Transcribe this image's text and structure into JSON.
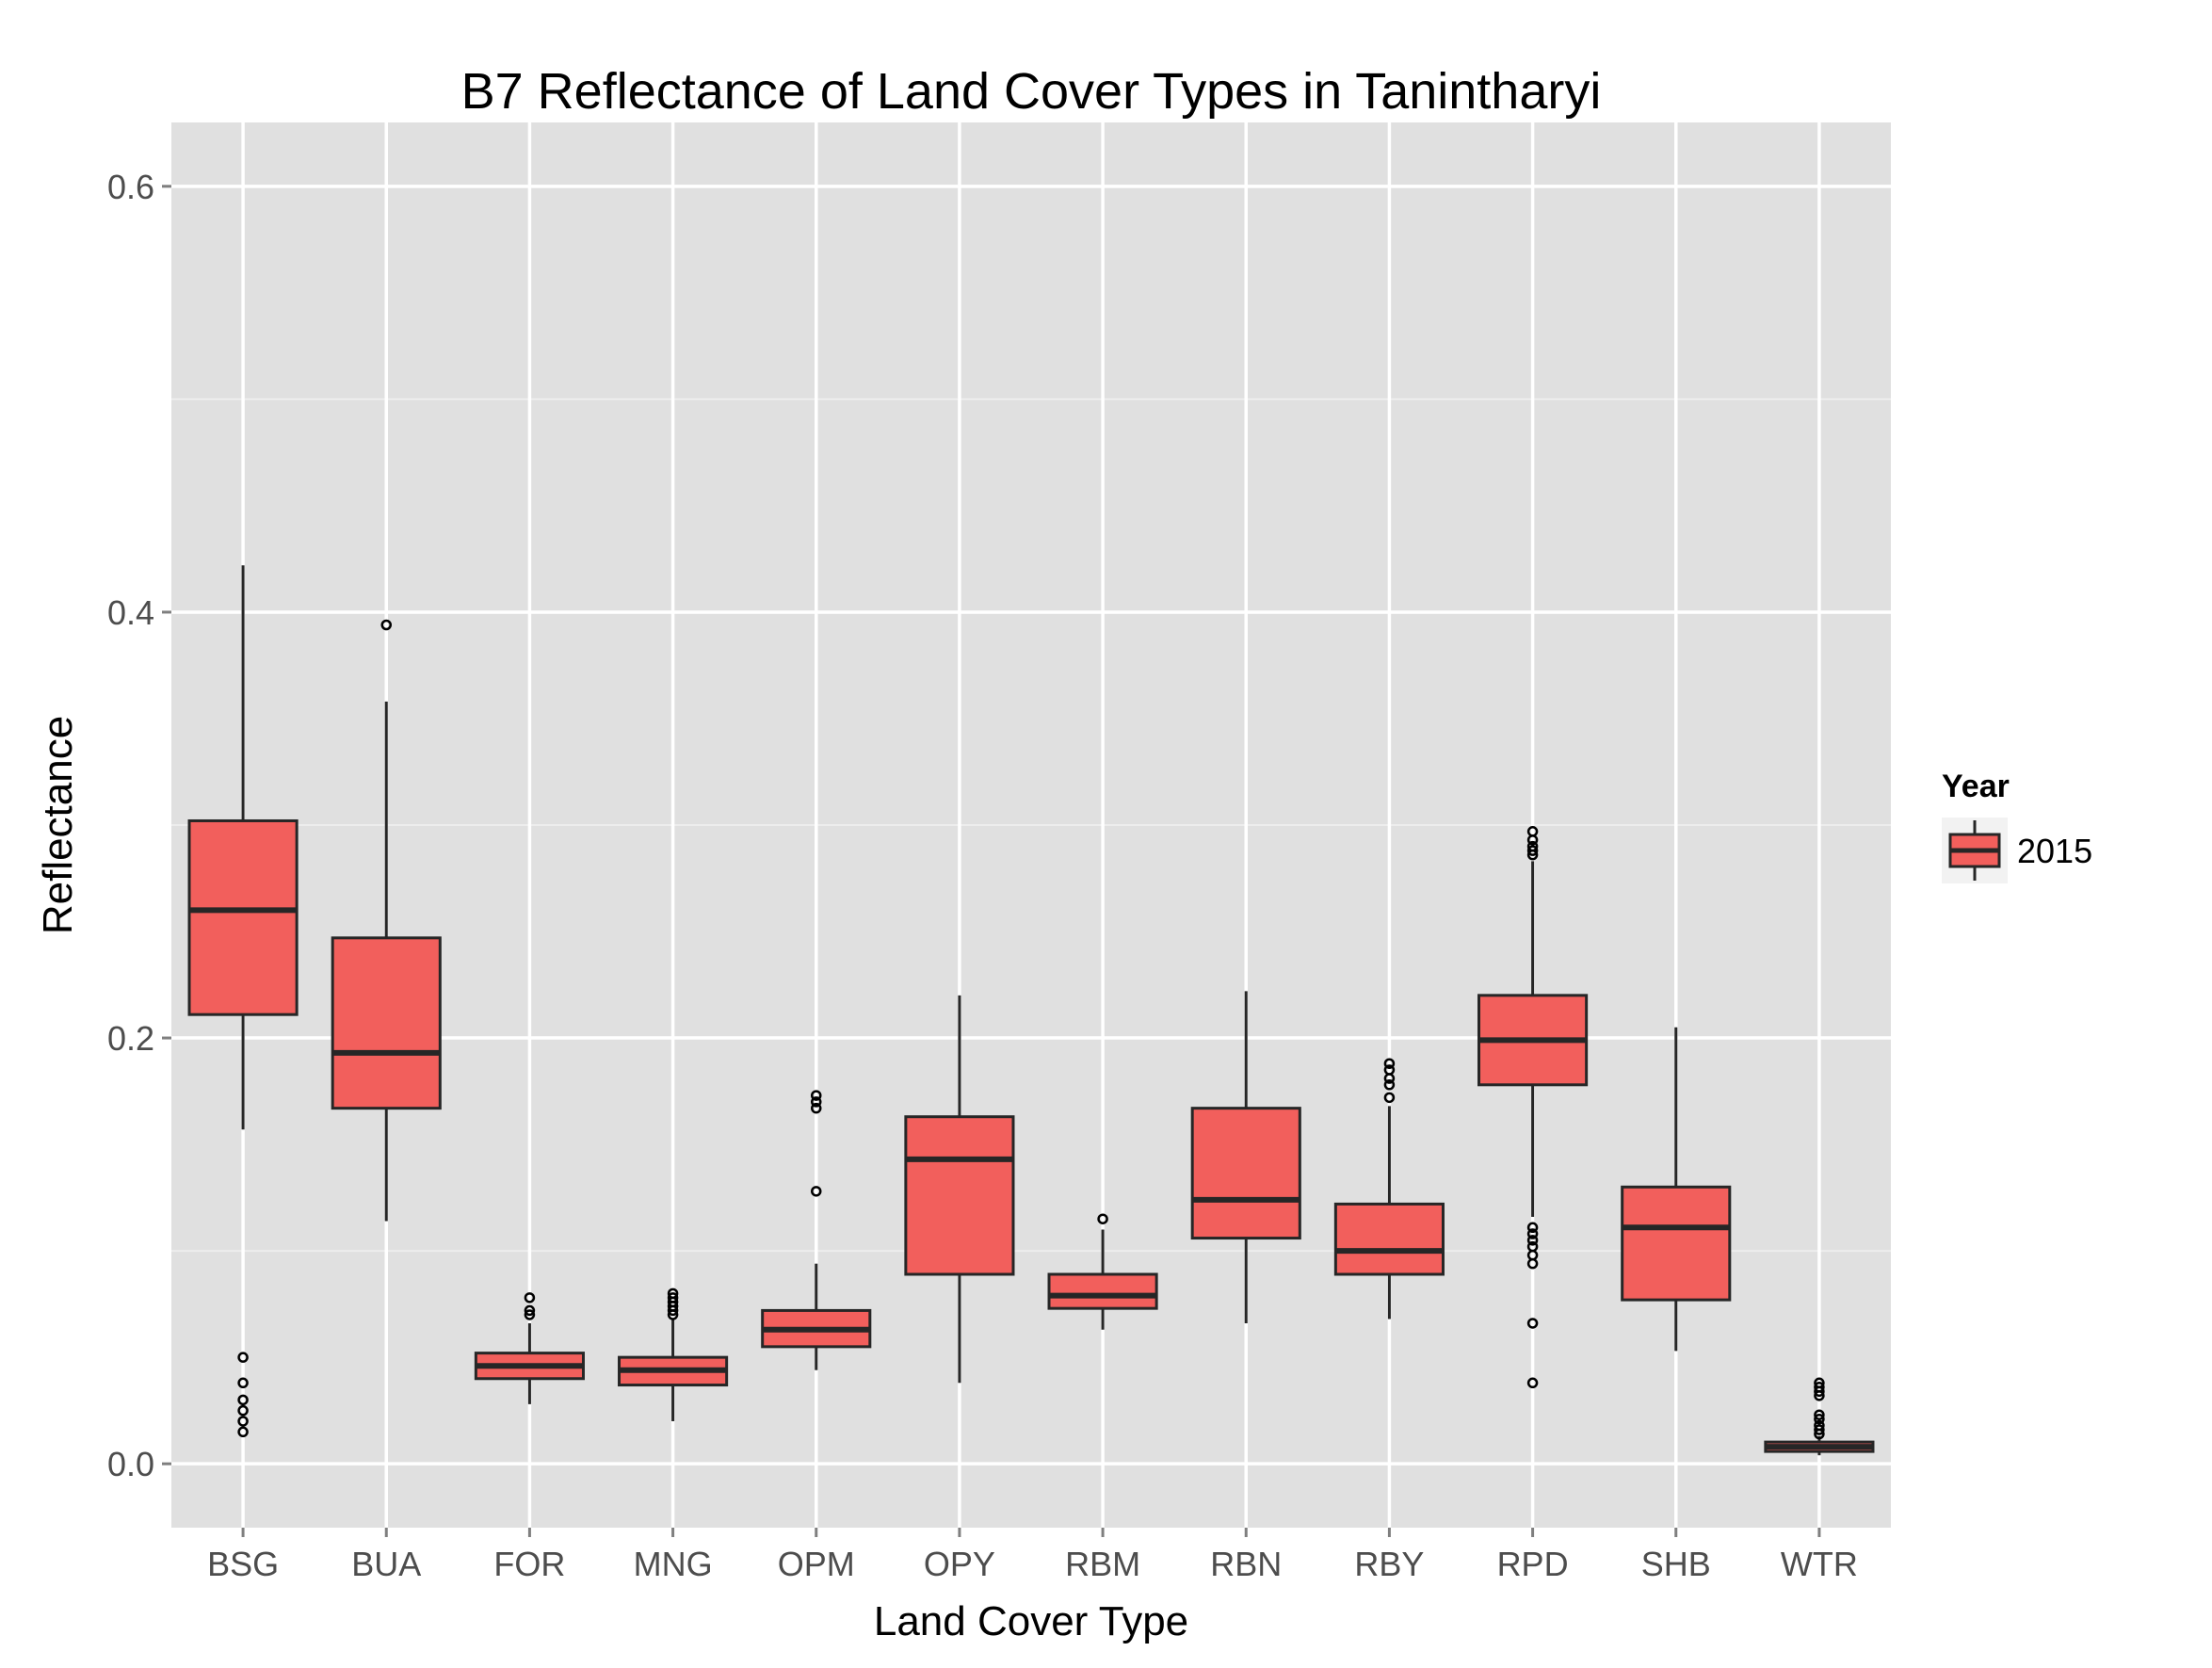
{
  "chart_data": {
    "type": "boxplot",
    "title": "B7 Reflectance of Land Cover Types in Tanintharyi",
    "xlabel": "Land Cover Type",
    "ylabel": "Reflectance",
    "ylim": [
      -0.03,
      0.63
    ],
    "yticks": [
      0.0,
      0.2,
      0.4,
      0.6
    ],
    "ytick_labels": [
      "0.0",
      "0.2",
      "0.4",
      "0.6"
    ],
    "grid": true,
    "legend": {
      "title": "Year",
      "position": "right",
      "entries": [
        "2015"
      ]
    },
    "colors": {
      "fill": "#F25F5C",
      "outline": "#262626",
      "panel": "#E0E0E0",
      "grid_major": "#FFFFFF",
      "grid_minor": "#EDEDED",
      "tick_text": "#4D4D4D"
    },
    "categories": [
      "BSG",
      "BUA",
      "FOR",
      "MNG",
      "OPM",
      "OPY",
      "RBM",
      "RBN",
      "RBY",
      "RPD",
      "SHB",
      "WTR"
    ],
    "series": [
      {
        "name": "2015",
        "boxes": [
          {
            "category": "BSG",
            "whisker_low": 0.157,
            "q1": 0.211,
            "median": 0.26,
            "q3": 0.302,
            "whisker_high": 0.422,
            "outliers": [
              0.015,
              0.02,
              0.025,
              0.03,
              0.038,
              0.05
            ]
          },
          {
            "category": "BUA",
            "whisker_low": 0.114,
            "q1": 0.167,
            "median": 0.193,
            "q3": 0.247,
            "whisker_high": 0.358,
            "outliers": [
              0.394
            ]
          },
          {
            "category": "FOR",
            "whisker_low": 0.028,
            "q1": 0.04,
            "median": 0.046,
            "q3": 0.052,
            "whisker_high": 0.066,
            "outliers": [
              0.07,
              0.072,
              0.078
            ]
          },
          {
            "category": "MNG",
            "whisker_low": 0.02,
            "q1": 0.037,
            "median": 0.044,
            "q3": 0.05,
            "whisker_high": 0.068,
            "outliers": [
              0.07,
              0.072,
              0.074,
              0.076,
              0.078,
              0.08
            ]
          },
          {
            "category": "OPM",
            "whisker_low": 0.044,
            "q1": 0.055,
            "median": 0.063,
            "q3": 0.072,
            "whisker_high": 0.094,
            "outliers": [
              0.128,
              0.167,
              0.17,
              0.173
            ]
          },
          {
            "category": "OPY",
            "whisker_low": 0.038,
            "q1": 0.089,
            "median": 0.143,
            "q3": 0.163,
            "whisker_high": 0.22,
            "outliers": []
          },
          {
            "category": "RBM",
            "whisker_low": 0.063,
            "q1": 0.073,
            "median": 0.079,
            "q3": 0.089,
            "whisker_high": 0.11,
            "outliers": [
              0.115
            ]
          },
          {
            "category": "RBN",
            "whisker_low": 0.066,
            "q1": 0.106,
            "median": 0.124,
            "q3": 0.167,
            "whisker_high": 0.222,
            "outliers": []
          },
          {
            "category": "RBY",
            "whisker_low": 0.068,
            "q1": 0.089,
            "median": 0.1,
            "q3": 0.122,
            "whisker_high": 0.168,
            "outliers": [
              0.172,
              0.178,
              0.181,
              0.185,
              0.188
            ]
          },
          {
            "category": "RPD",
            "whisker_low": 0.116,
            "q1": 0.178,
            "median": 0.199,
            "q3": 0.22,
            "whisker_high": 0.283,
            "outliers": [
              0.038,
              0.066,
              0.094,
              0.098,
              0.102,
              0.105,
              0.108,
              0.111,
              0.286,
              0.288,
              0.29,
              0.293,
              0.297
            ]
          },
          {
            "category": "SHB",
            "whisker_low": 0.053,
            "q1": 0.077,
            "median": 0.111,
            "q3": 0.13,
            "whisker_high": 0.205,
            "outliers": []
          },
          {
            "category": "WTR",
            "whisker_low": 0.004,
            "q1": 0.006,
            "median": 0.008,
            "q3": 0.01,
            "whisker_high": 0.013,
            "outliers": [
              0.014,
              0.016,
              0.018,
              0.021,
              0.023,
              0.032,
              0.034,
              0.036,
              0.038
            ]
          }
        ]
      }
    ]
  }
}
